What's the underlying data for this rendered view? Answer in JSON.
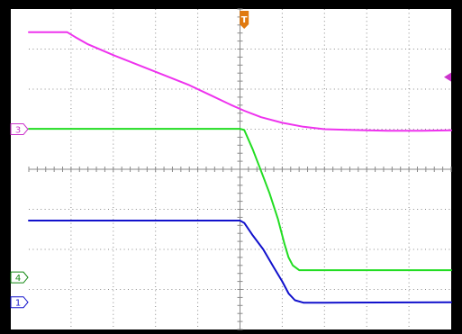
{
  "chart_data": {
    "type": "line",
    "grid": true,
    "x_divisions": 10,
    "y_divisions": 8,
    "xlim": [
      0,
      10
    ],
    "ylim": [
      0,
      8
    ],
    "trigger_marker": {
      "label": "T",
      "x": 5.1,
      "color": "#e07a10"
    },
    "trigger_level": {
      "y": 6.3,
      "color": "#cc33cc"
    },
    "series": [
      {
        "id": "ch3",
        "color": "#ee33ee",
        "marker": {
          "label": "3",
          "ground": 5.0,
          "color": "#cc33cc"
        },
        "points": [
          [
            0.0,
            7.42
          ],
          [
            0.91,
            7.42
          ],
          [
            1.1,
            7.3
          ],
          [
            1.4,
            7.12
          ],
          [
            2.0,
            6.85
          ],
          [
            2.6,
            6.6
          ],
          [
            3.2,
            6.35
          ],
          [
            3.8,
            6.1
          ],
          [
            4.3,
            5.85
          ],
          [
            4.8,
            5.6
          ],
          [
            5.1,
            5.46
          ],
          [
            5.5,
            5.3
          ],
          [
            6.0,
            5.16
          ],
          [
            6.5,
            5.06
          ],
          [
            7.0,
            5.0
          ],
          [
            8.0,
            4.97
          ],
          [
            8.5,
            4.96
          ],
          [
            9.3,
            4.96
          ],
          [
            10.0,
            4.97
          ]
        ]
      },
      {
        "id": "ch4",
        "color": "#22dd22",
        "marker": {
          "label": "4",
          "ground": 1.3,
          "color": "#118811"
        },
        "points": [
          [
            0.0,
            5.01
          ],
          [
            5.0,
            5.01
          ],
          [
            5.1,
            4.98
          ],
          [
            5.3,
            4.5
          ],
          [
            5.5,
            3.95
          ],
          [
            5.7,
            3.4
          ],
          [
            5.9,
            2.75
          ],
          [
            6.05,
            2.15
          ],
          [
            6.15,
            1.8
          ],
          [
            6.25,
            1.6
          ],
          [
            6.4,
            1.48
          ],
          [
            7.0,
            1.48
          ],
          [
            10.0,
            1.48
          ]
        ]
      },
      {
        "id": "ch1",
        "color": "#1111cc",
        "marker": {
          "label": "1",
          "ground": 0.68,
          "color": "#1111cc"
        },
        "points": [
          [
            0.0,
            2.72
          ],
          [
            5.0,
            2.72
          ],
          [
            5.1,
            2.66
          ],
          [
            5.3,
            2.35
          ],
          [
            5.55,
            2.0
          ],
          [
            5.8,
            1.55
          ],
          [
            6.0,
            1.2
          ],
          [
            6.15,
            0.9
          ],
          [
            6.3,
            0.73
          ],
          [
            6.5,
            0.67
          ],
          [
            7.0,
            0.67
          ],
          [
            10.0,
            0.68
          ]
        ]
      }
    ]
  }
}
